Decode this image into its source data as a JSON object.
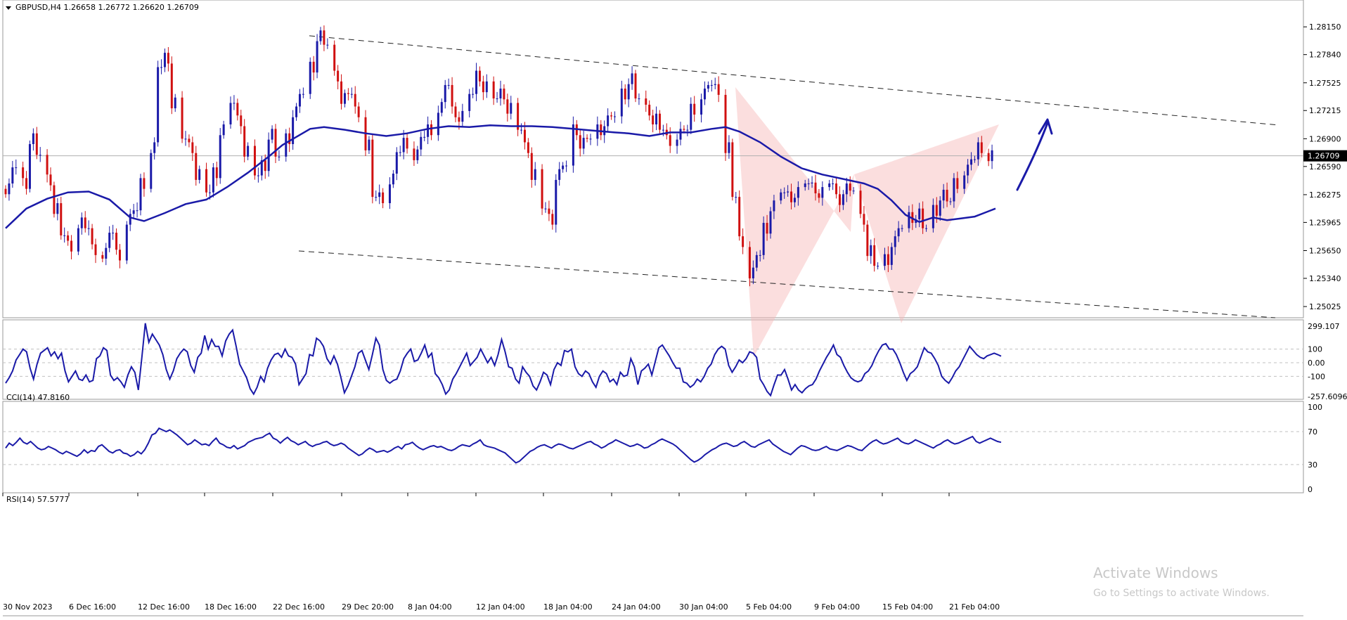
{
  "window": {
    "symbol_header": "GBPUSD,H4  1.26658 1.26772 1.26620 1.26709",
    "activate_title": "Activate Windows",
    "activate_sub": "Go to Settings to activate Windows."
  },
  "chart_data": [
    {
      "type": "candlestick",
      "title": "GBPUSD,H4  1.26658 1.26772 1.26620 1.26709",
      "ylim": [
        1.249,
        1.2845
      ],
      "y_ticks": [
        "1.28150",
        "1.27840",
        "1.27525",
        "1.27215",
        "1.26900",
        "1.26590",
        "1.26275",
        "1.25965",
        "1.25650",
        "1.25340",
        "1.25025"
      ],
      "current_price": "1.26709",
      "x_ticks": [
        "30 Nov 2023",
        "6 Dec 16:00",
        "12 Dec 16:00",
        "18 Dec 16:00",
        "22 Dec 16:00",
        "29 Dec 20:00",
        "8 Jan 04:00",
        "12 Jan 04:00",
        "18 Jan 04:00",
        "24 Jan 04:00",
        "30 Jan 04:00",
        "5 Feb 04:00",
        "9 Feb 04:00",
        "15 Feb 04:00",
        "21 Feb 04:00"
      ],
      "series": [
        {
          "kind": "moving_average",
          "color": "#1a1aa8",
          "points": [
            [
              0,
              1.259
            ],
            [
              6,
              1.2612
            ],
            [
              12,
              1.2623
            ],
            [
              18,
              1.263
            ],
            [
              24,
              1.2631
            ],
            [
              30,
              1.2622
            ],
            [
              36,
              1.2602
            ],
            [
              40,
              1.2598
            ],
            [
              46,
              1.2607
            ],
            [
              52,
              1.2617
            ],
            [
              58,
              1.2622
            ],
            [
              64,
              1.2636
            ],
            [
              70,
              1.2652
            ],
            [
              76,
              1.267
            ],
            [
              80,
              1.2683
            ],
            [
              84,
              1.2692
            ],
            [
              88,
              1.2701
            ],
            [
              92,
              1.2703
            ],
            [
              98,
              1.27
            ],
            [
              104,
              1.2696
            ],
            [
              110,
              1.2693
            ],
            [
              116,
              1.2696
            ],
            [
              122,
              1.2701
            ],
            [
              128,
              1.2704
            ],
            [
              134,
              1.2703
            ],
            [
              140,
              1.2705
            ],
            [
              146,
              1.2704
            ],
            [
              152,
              1.2704
            ],
            [
              158,
              1.2703
            ],
            [
              164,
              1.2701
            ],
            [
              170,
              1.2699
            ],
            [
              176,
              1.2697
            ],
            [
              180,
              1.2696
            ],
            [
              186,
              1.2693
            ],
            [
              192,
              1.2697
            ],
            [
              198,
              1.2697
            ],
            [
              204,
              1.2701
            ],
            [
              208,
              1.2703
            ],
            [
              212,
              1.2698
            ],
            [
              218,
              1.2686
            ],
            [
              224,
              1.267
            ],
            [
              230,
              1.2657
            ],
            [
              236,
              1.265
            ],
            [
              242,
              1.2645
            ],
            [
              248,
              1.264
            ],
            [
              252,
              1.2634
            ],
            [
              256,
              1.2621
            ],
            [
              260,
              1.2605
            ],
            [
              264,
              1.2597
            ],
            [
              268,
              1.2602
            ],
            [
              272,
              1.2599
            ],
            [
              276,
              1.2601
            ],
            [
              280,
              1.2603
            ],
            [
              284,
              1.2609
            ],
            [
              286,
              1.2612
            ]
          ]
        },
        {
          "kind": "candles_summary",
          "bull_color": "#1a1aa8",
          "bear_color": "#d01010",
          "closes": [
            1.2634,
            1.2658,
            1.264,
            1.269,
            1.2672,
            1.2644,
            1.2612,
            1.2582,
            1.257,
            1.2596,
            1.259,
            1.2566,
            1.2562,
            1.2585,
            1.256,
            1.26,
            1.261,
            1.264,
            1.268,
            1.277,
            1.278,
            1.273,
            1.269,
            1.268,
            1.265,
            1.263,
            1.2652,
            1.27,
            1.273,
            1.271,
            1.2676,
            1.2649,
            1.266,
            1.2695,
            1.267,
            1.269,
            1.272,
            1.274,
            1.277,
            1.2805,
            1.2795,
            1.276,
            1.2735,
            1.274,
            1.272,
            1.2683,
            1.2625,
            1.2624,
            1.2645,
            1.2675,
            1.2685,
            1.2672,
            1.2692,
            1.27,
            1.2725,
            1.275,
            1.272,
            1.2715,
            1.274,
            1.276,
            1.2748,
            1.2735,
            1.274,
            1.2724,
            1.27,
            1.268,
            1.265,
            1.2612,
            1.26,
            1.265,
            1.266,
            1.27,
            1.2685,
            1.269,
            1.27,
            1.271,
            1.2715,
            1.274,
            1.2757,
            1.2735,
            1.2722,
            1.2712,
            1.27,
            1.2688,
            1.2695,
            1.27,
            1.2723,
            1.274,
            1.275,
            1.2745,
            1.268,
            1.2625,
            1.2575,
            1.254,
            1.256,
            1.259,
            1.2615,
            1.263,
            1.2625,
            1.263,
            1.264,
            1.2635,
            1.263,
            1.264,
            1.2622,
            1.2634,
            1.2632,
            1.26,
            1.2565,
            1.2548,
            1.2555,
            1.2575,
            1.259,
            1.2602,
            1.2606,
            1.259,
            1.261,
            1.2627,
            1.262,
            1.264,
            1.2655,
            1.2667,
            1.268,
            1.2671
          ]
        },
        {
          "kind": "channel",
          "upper": [
            [
              0,
              1.2827
            ],
            [
              286,
              1.2717
            ]
          ],
          "lower": [
            [
              0,
              1.2625
            ],
            [
              286,
              1.2522
            ]
          ]
        }
      ]
    },
    {
      "type": "line",
      "title": "CCI(14) 47.8160",
      "ylim": [
        -257.6096,
        299.107
      ],
      "y_ticks": [
        "299.107",
        "100",
        "0.00",
        "-100",
        "-257.6096"
      ],
      "series": [
        {
          "name": "CCI(14)",
          "values": [
            -150,
            -110,
            -60,
            20,
            60,
            100,
            80,
            -40,
            -120,
            -10,
            70,
            90,
            110,
            50,
            80,
            30,
            70,
            -60,
            -140,
            -100,
            -60,
            -120,
            -130,
            -90,
            -140,
            -130,
            30,
            50,
            110,
            90,
            -90,
            -130,
            -110,
            -140,
            -180,
            -90,
            -30,
            -70,
            -200,
            40,
            290,
            150,
            210,
            170,
            130,
            60,
            -50,
            -120,
            -60,
            30,
            70,
            100,
            80,
            -20,
            -70,
            40,
            70,
            200,
            100,
            170,
            120,
            120,
            50,
            160,
            210,
            240,
            120,
            -10,
            -60,
            -110,
            -190,
            -230,
            -180,
            -100,
            -140,
            -40,
            20,
            60,
            70,
            40,
            100,
            50,
            40,
            -10,
            -160,
            -120,
            -80,
            60,
            50,
            180,
            160,
            120,
            30,
            -10,
            50,
            -10,
            -110,
            -220,
            -170,
            -100,
            -30,
            70,
            90,
            20,
            -50,
            60,
            180,
            130,
            -50,
            -130,
            -150,
            -130,
            -120,
            -60,
            30,
            70,
            100,
            10,
            20,
            70,
            130,
            40,
            70,
            -80,
            -110,
            -160,
            -230,
            -200,
            -120,
            -80,
            -30,
            20,
            70,
            -20,
            10,
            40,
            100,
            50,
            0,
            40,
            -20,
            60,
            170,
            80,
            -30,
            -40,
            -120,
            -150,
            -30,
            -70,
            -100,
            -170,
            -200,
            -140,
            -70,
            -90,
            -160,
            -50,
            0,
            -20,
            90,
            80,
            100,
            -30,
            -80,
            -100,
            -60,
            -80,
            -140,
            -180,
            -100,
            -60,
            -80,
            -140,
            -120,
            -160,
            -70,
            -100,
            -90,
            30,
            -30,
            -160,
            -60,
            -40,
            -10,
            -90,
            10,
            110,
            130,
            90,
            50,
            0,
            -40,
            -40,
            -140,
            -150,
            -180,
            -160,
            -120,
            -140,
            -100,
            -40,
            -10,
            60,
            100,
            120,
            100,
            -20,
            -70,
            -30,
            20,
            0,
            30,
            80,
            70,
            40,
            -120,
            -160,
            -210,
            -240,
            -160,
            -90,
            -90,
            -50,
            -120,
            -200,
            -160,
            -200,
            -220,
            -190,
            -170,
            -160,
            -120,
            -60,
            -10,
            40,
            80,
            130,
            60,
            40,
            -20,
            -70,
            -110,
            -130,
            -140,
            -130,
            -80,
            -60,
            -20,
            40,
            90,
            130,
            140,
            100,
            100,
            60,
            0,
            -70,
            -130,
            -80,
            -60,
            -30,
            40,
            110,
            80,
            70,
            30,
            -20,
            -100,
            -130,
            -150,
            -110,
            -60,
            -30,
            20,
            70,
            120,
            90,
            60,
            40,
            30,
            50,
            60,
            70,
            60,
            48
          ]
        }
      ]
    },
    {
      "type": "line",
      "title": "RSI(14) 57.5777",
      "ylim": [
        0,
        100
      ],
      "y_ticks": [
        "100",
        "70",
        "30",
        "0"
      ],
      "series": [
        {
          "name": "RSI(14)",
          "values": [
            50,
            56,
            53,
            57,
            62,
            57,
            55,
            58,
            54,
            50,
            48,
            49,
            52,
            50,
            48,
            45,
            43,
            46,
            44,
            42,
            40,
            43,
            48,
            44,
            47,
            46,
            52,
            54,
            50,
            46,
            44,
            47,
            48,
            44,
            43,
            40,
            42,
            46,
            43,
            48,
            56,
            66,
            68,
            74,
            72,
            70,
            72,
            69,
            66,
            62,
            58,
            54,
            56,
            60,
            57,
            54,
            55,
            53,
            58,
            62,
            56,
            54,
            51,
            50,
            53,
            49,
            51,
            53,
            57,
            59,
            61,
            62,
            63,
            66,
            68,
            62,
            60,
            56,
            60,
            63,
            59,
            57,
            54,
            56,
            58,
            54,
            52,
            54,
            55,
            57,
            58,
            55,
            53,
            54,
            56,
            54,
            50,
            47,
            44,
            41,
            43,
            47,
            50,
            48,
            45,
            46,
            47,
            45,
            47,
            50,
            52,
            49,
            54,
            55,
            57,
            53,
            50,
            48,
            50,
            52,
            53,
            51,
            52,
            50,
            48,
            47,
            49,
            52,
            54,
            53,
            52,
            55,
            57,
            60,
            54,
            52,
            51,
            50,
            48,
            46,
            44,
            40,
            36,
            32,
            34,
            38,
            42,
            46,
            48,
            51,
            53,
            54,
            52,
            50,
            53,
            55,
            54,
            52,
            50,
            49,
            51,
            53,
            55,
            57,
            58,
            55,
            53,
            50,
            52,
            55,
            57,
            60,
            58,
            56,
            54,
            52,
            53,
            55,
            53,
            50,
            51,
            54,
            56,
            59,
            61,
            59,
            57,
            55,
            52,
            48,
            44,
            40,
            36,
            33,
            35,
            38,
            42,
            45,
            48,
            50,
            53,
            55,
            56,
            54,
            52,
            53,
            56,
            58,
            55,
            52,
            51,
            54,
            56,
            58,
            60,
            55,
            52,
            49,
            46,
            44,
            42,
            46,
            50,
            53,
            52,
            50,
            48,
            47,
            48,
            50,
            52,
            49,
            48,
            47,
            49,
            51,
            53,
            52,
            50,
            48,
            47,
            51,
            55,
            58,
            60,
            57,
            55,
            56,
            58,
            60,
            62,
            58,
            56,
            55,
            57,
            60,
            58,
            56,
            54,
            52,
            50,
            53,
            55,
            58,
            60,
            57,
            55,
            56,
            58,
            60,
            62,
            64,
            58,
            56,
            58,
            60,
            62,
            60,
            58,
            57
          ]
        }
      ]
    }
  ]
}
